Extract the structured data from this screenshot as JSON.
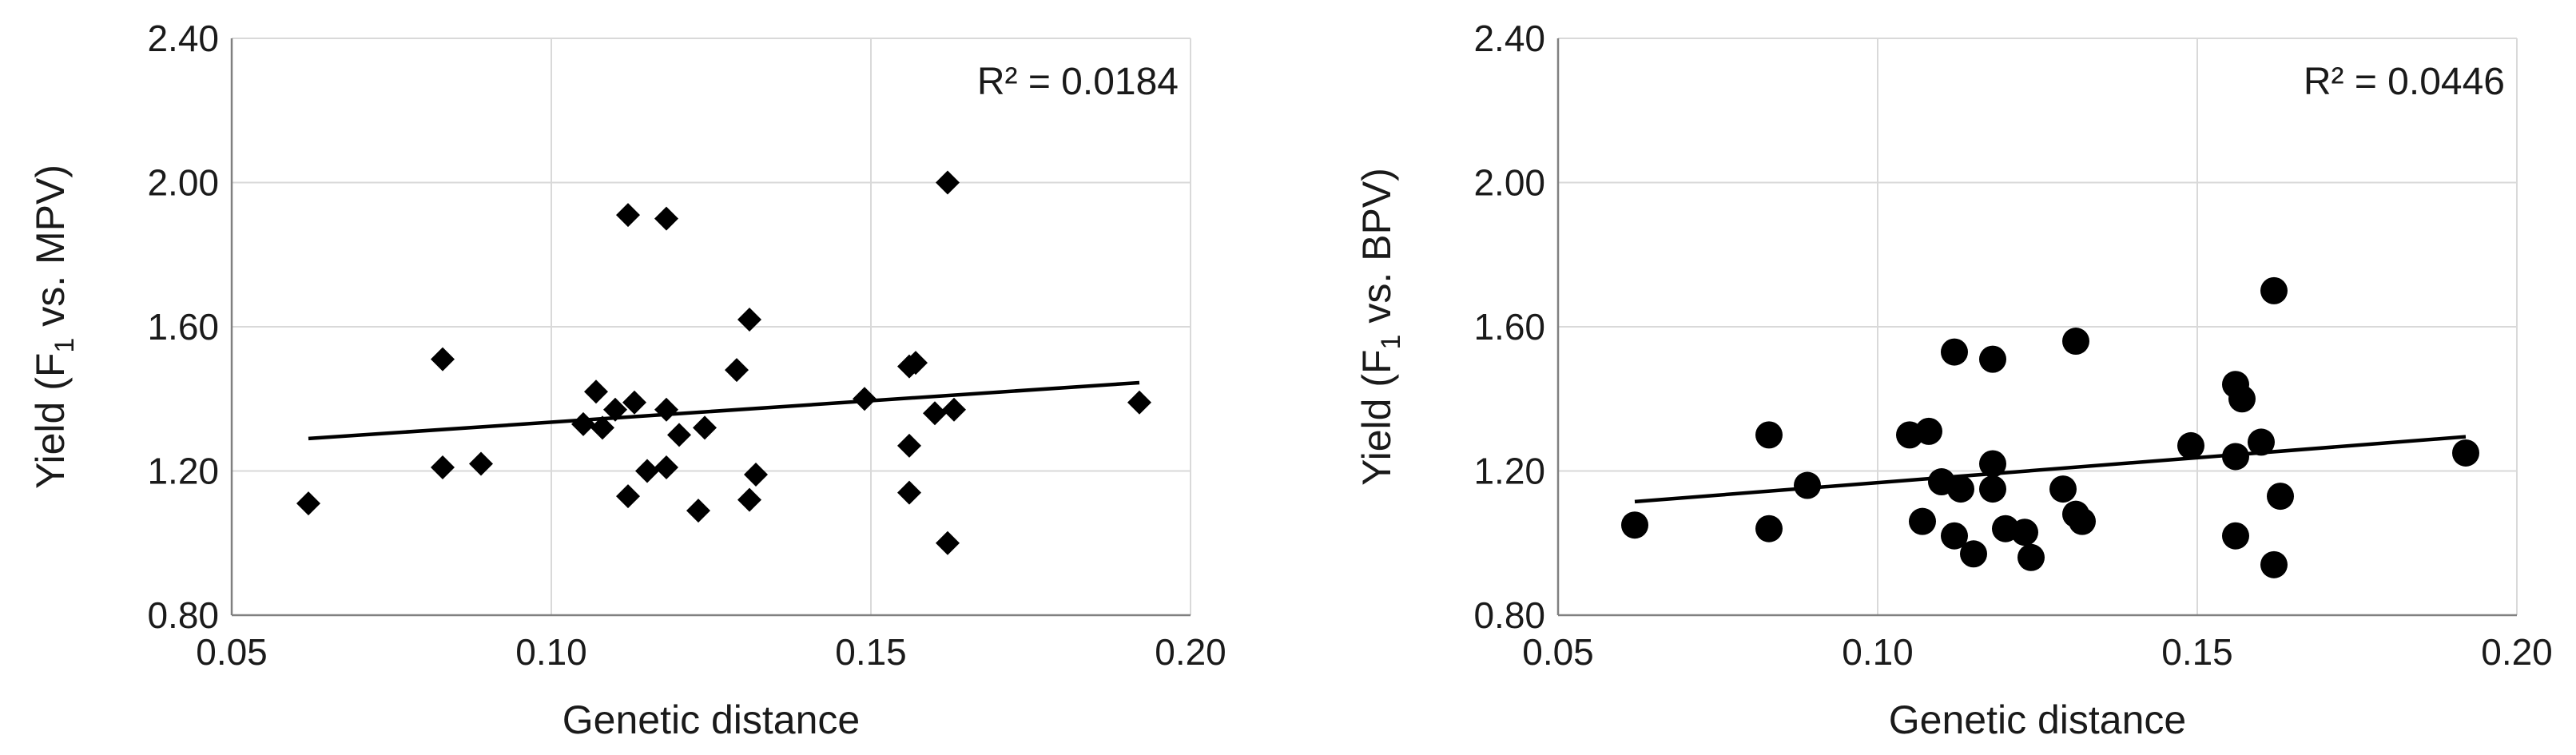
{
  "chart_data": [
    {
      "type": "scatter",
      "marker": "diamond",
      "xlabel": "Genetic distance",
      "ylabel": {
        "prefix": "Yield (F",
        "sub": "1",
        "suffix": " vs. MPV)"
      },
      "xlim": [
        0.05,
        0.2
      ],
      "ylim": [
        0.8,
        2.4
      ],
      "xticks": [
        "0.05",
        "0.10",
        "0.15",
        "0.20"
      ],
      "yticks": [
        "0.80",
        "1.20",
        "1.60",
        "2.00",
        "2.40"
      ],
      "grid": true,
      "annotation": "R² = 0.0184",
      "trendline": {
        "x": [
          0.062,
          0.192
        ],
        "y": [
          1.29,
          1.445
        ]
      },
      "points": [
        [
          0.062,
          1.11
        ],
        [
          0.083,
          1.51
        ],
        [
          0.083,
          1.21
        ],
        [
          0.089,
          1.22
        ],
        [
          0.105,
          1.33
        ],
        [
          0.107,
          1.42
        ],
        [
          0.108,
          1.32
        ],
        [
          0.11,
          1.37
        ],
        [
          0.112,
          1.91
        ],
        [
          0.112,
          1.13
        ],
        [
          0.113,
          1.39
        ],
        [
          0.115,
          1.2
        ],
        [
          0.118,
          1.9
        ],
        [
          0.118,
          1.37
        ],
        [
          0.118,
          1.21
        ],
        [
          0.12,
          1.3
        ],
        [
          0.123,
          1.09
        ],
        [
          0.124,
          1.32
        ],
        [
          0.129,
          1.48
        ],
        [
          0.131,
          1.62
        ],
        [
          0.131,
          1.12
        ],
        [
          0.132,
          1.19
        ],
        [
          0.149,
          1.4
        ],
        [
          0.156,
          1.49
        ],
        [
          0.156,
          1.27
        ],
        [
          0.156,
          1.14
        ],
        [
          0.157,
          1.5
        ],
        [
          0.16,
          1.36
        ],
        [
          0.162,
          2.0
        ],
        [
          0.162,
          1.0
        ],
        [
          0.163,
          1.37
        ],
        [
          0.192,
          1.39
        ]
      ]
    },
    {
      "type": "scatter",
      "marker": "circle",
      "xlabel": "Genetic distance",
      "ylabel": {
        "prefix": "Yield (F",
        "sub": "1",
        "suffix": " vs. BPV)"
      },
      "xlim": [
        0.05,
        0.2
      ],
      "ylim": [
        0.8,
        2.4
      ],
      "xticks": [
        "0.05",
        "0.10",
        "0.15",
        "0.20"
      ],
      "yticks": [
        "0.80",
        "1.20",
        "1.60",
        "2.00",
        "2.40"
      ],
      "grid": true,
      "annotation": "R² = 0.0446",
      "trendline": {
        "x": [
          0.062,
          0.192
        ],
        "y": [
          1.115,
          1.295
        ]
      },
      "points": [
        [
          0.062,
          1.05
        ],
        [
          0.083,
          1.3
        ],
        [
          0.083,
          1.04
        ],
        [
          0.089,
          1.16
        ],
        [
          0.105,
          1.3
        ],
        [
          0.107,
          1.06
        ],
        [
          0.108,
          1.31
        ],
        [
          0.11,
          1.17
        ],
        [
          0.112,
          1.53
        ],
        [
          0.112,
          1.02
        ],
        [
          0.113,
          1.15
        ],
        [
          0.115,
          0.97
        ],
        [
          0.118,
          1.51
        ],
        [
          0.118,
          1.22
        ],
        [
          0.118,
          1.15
        ],
        [
          0.12,
          1.04
        ],
        [
          0.123,
          1.03
        ],
        [
          0.124,
          0.96
        ],
        [
          0.129,
          1.15
        ],
        [
          0.131,
          1.56
        ],
        [
          0.131,
          1.08
        ],
        [
          0.132,
          1.06
        ],
        [
          0.149,
          1.27
        ],
        [
          0.156,
          1.44
        ],
        [
          0.156,
          1.24
        ],
        [
          0.156,
          1.02
        ],
        [
          0.157,
          1.4
        ],
        [
          0.16,
          1.28
        ],
        [
          0.162,
          1.7
        ],
        [
          0.162,
          0.94
        ],
        [
          0.163,
          1.13
        ],
        [
          0.192,
          1.25
        ]
      ]
    }
  ]
}
